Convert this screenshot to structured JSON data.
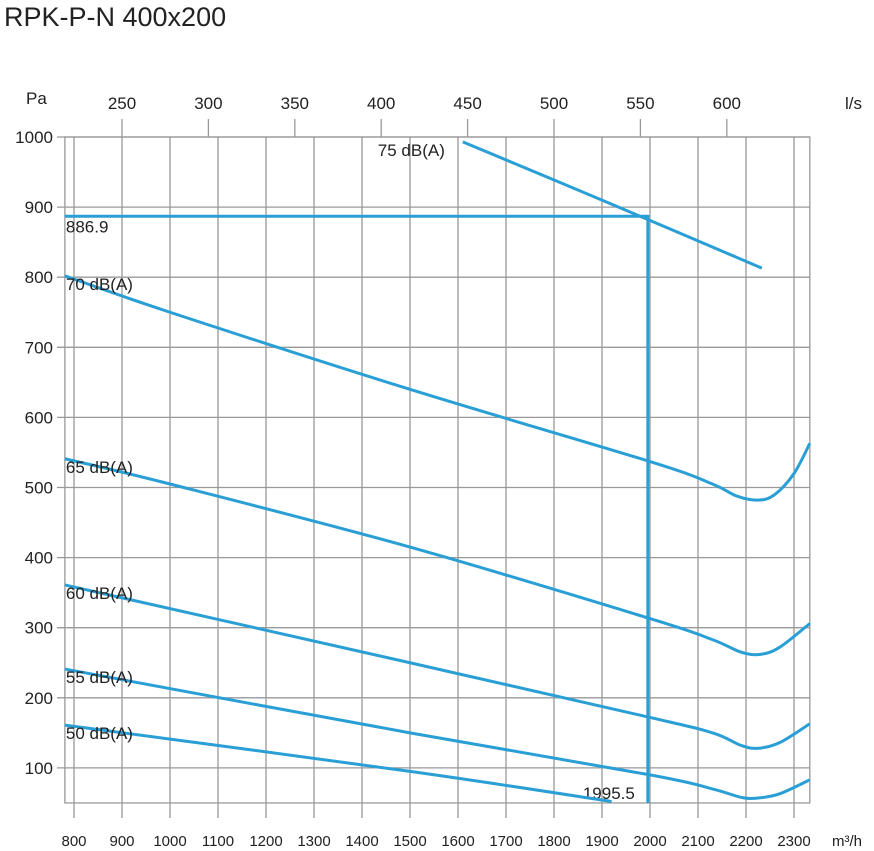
{
  "chart_data": {
    "type": "line",
    "title": "RPK-P-N 400x200",
    "ylabel": "Pa",
    "xlabel": "m³/h",
    "x2label": "l/s",
    "ylim": [
      50,
      1000
    ],
    "xlim": [
      781,
      2333
    ],
    "yticks": [
      100,
      200,
      300,
      400,
      500,
      600,
      700,
      800,
      900,
      1000
    ],
    "xticks": [
      800,
      900,
      1000,
      1100,
      1200,
      1300,
      1400,
      1500,
      1600,
      1700,
      1800,
      1900,
      2000,
      2100,
      2200,
      2300
    ],
    "x2ticks": [
      250,
      300,
      350,
      400,
      450,
      500,
      550,
      600
    ],
    "grid": true,
    "series": [
      {
        "name": "75 dB(A)",
        "points": [
          [
            1610,
            993
          ],
          [
            1900,
            910
          ],
          [
            2233,
            813
          ]
        ]
      },
      {
        "name": "70 dB(A)",
        "points": [
          [
            781,
            802
          ],
          [
            1000,
            750
          ],
          [
            1500,
            640
          ],
          [
            2000,
            537
          ],
          [
            2130,
            505
          ],
          [
            2180,
            488
          ],
          [
            2225,
            482
          ],
          [
            2260,
            490
          ],
          [
            2300,
            520
          ],
          [
            2333,
            563
          ]
        ]
      },
      {
        "name": "65 dB(A)",
        "points": [
          [
            781,
            541
          ],
          [
            1000,
            505
          ],
          [
            1500,
            415
          ],
          [
            2000,
            313
          ],
          [
            2130,
            283
          ],
          [
            2190,
            265
          ],
          [
            2230,
            262
          ],
          [
            2270,
            272
          ],
          [
            2333,
            306
          ]
        ]
      },
      {
        "name": "60 dB(A)",
        "points": [
          [
            781,
            361
          ],
          [
            1500,
            250
          ],
          [
            2000,
            172
          ],
          [
            2130,
            150
          ],
          [
            2190,
            132
          ],
          [
            2225,
            128
          ],
          [
            2270,
            136
          ],
          [
            2333,
            163
          ]
        ]
      },
      {
        "name": "55 dB(A)",
        "points": [
          [
            781,
            241
          ],
          [
            1500,
            150
          ],
          [
            2000,
            90
          ],
          [
            2130,
            70
          ],
          [
            2190,
            58
          ],
          [
            2225,
            57
          ],
          [
            2270,
            63
          ],
          [
            2333,
            83
          ]
        ]
      },
      {
        "name": "50 dB(A)",
        "points": [
          [
            781,
            161
          ],
          [
            1500,
            95
          ],
          [
            1920,
            52
          ]
        ]
      }
    ],
    "operating_point": {
      "flow": 1995.5,
      "pressure": 886.9,
      "flow_label": "1995.5",
      "pressure_label": "886.9"
    }
  }
}
